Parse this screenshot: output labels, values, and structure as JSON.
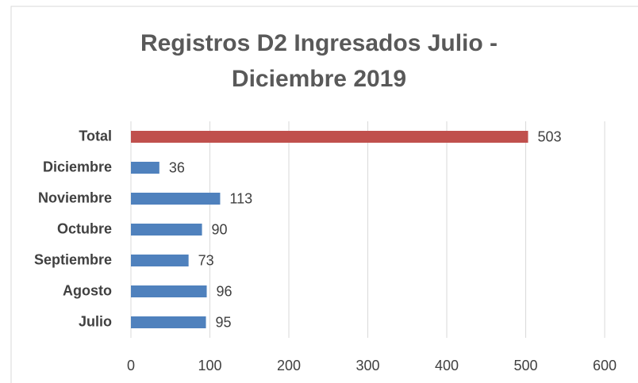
{
  "chart_data": {
    "type": "bar",
    "orientation": "horizontal",
    "title": "Registros D2 Ingresados Julio - Diciembre 2019",
    "categories": [
      "Total",
      "Diciembre",
      "Noviembre",
      "Octubre",
      "Septiembre",
      "Agosto",
      "Julio"
    ],
    "values": [
      503,
      36,
      113,
      90,
      73,
      96,
      95
    ],
    "colors": [
      "#c0504d",
      "#4f81bd",
      "#4f81bd",
      "#4f81bd",
      "#4f81bd",
      "#4f81bd",
      "#4f81bd"
    ],
    "xlim": [
      0,
      600
    ],
    "xticks": [
      0,
      100,
      200,
      300,
      400,
      500,
      600
    ],
    "grid": true
  }
}
